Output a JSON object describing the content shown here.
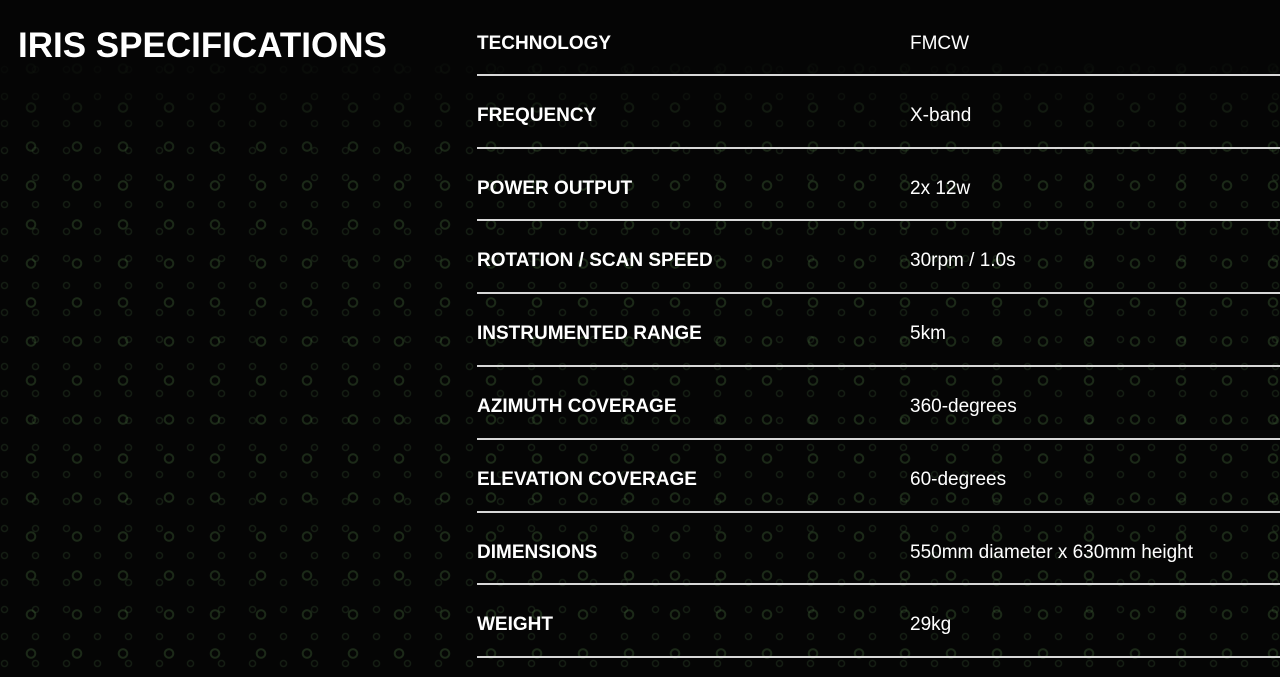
{
  "title": "IRIS SPECIFICATIONS",
  "specs": [
    {
      "label": "TECHNOLOGY",
      "value": "FMCW"
    },
    {
      "label": "FREQUENCY",
      "value": "X-band"
    },
    {
      "label": "POWER OUTPUT",
      "value": "2x 12w"
    },
    {
      "label": "ROTATION / SCAN SPEED",
      "value": "30rpm / 1.0s"
    },
    {
      "label": "INSTRUMENTED RANGE",
      "value": "5km"
    },
    {
      "label": "AZIMUTH COVERAGE",
      "value": "360-degrees"
    },
    {
      "label": "ELEVATION COVERAGE",
      "value": "60-degrees"
    },
    {
      "label": "DIMENSIONS",
      "value": "550mm diameter x 630mm height"
    },
    {
      "label": "WEIGHT",
      "value": "29kg"
    }
  ]
}
